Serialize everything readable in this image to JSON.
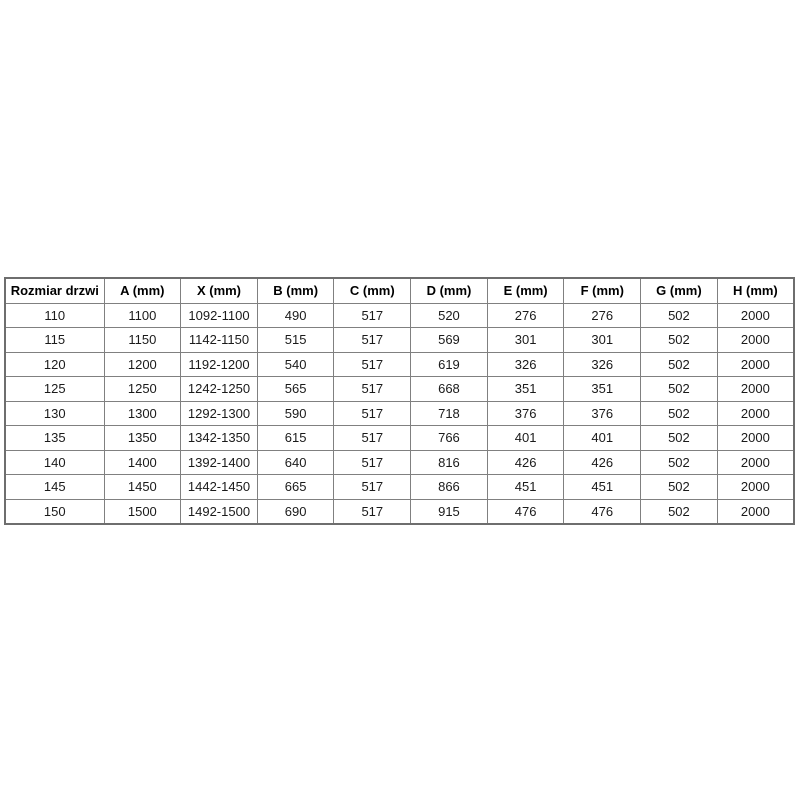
{
  "page": {
    "background_color": "#ffffff"
  },
  "table": {
    "semantic_name": "door-dimensions-table",
    "border_color": "#808080",
    "text_color": "#1a1a1a",
    "columns": [
      "Rozmiar drzwi",
      "A (mm)",
      "X (mm)",
      "B (mm)",
      "C (mm)",
      "D (mm)",
      "E (mm)",
      "F (mm)",
      "G (mm)",
      "H (mm)"
    ],
    "rows": [
      [
        "110",
        "1100",
        "1092-1100",
        "490",
        "517",
        "520",
        "276",
        "276",
        "502",
        "2000"
      ],
      [
        "115",
        "1150",
        "1142-1150",
        "515",
        "517",
        "569",
        "301",
        "301",
        "502",
        "2000"
      ],
      [
        "120",
        "1200",
        "1192-1200",
        "540",
        "517",
        "619",
        "326",
        "326",
        "502",
        "2000"
      ],
      [
        "125",
        "1250",
        "1242-1250",
        "565",
        "517",
        "668",
        "351",
        "351",
        "502",
        "2000"
      ],
      [
        "130",
        "1300",
        "1292-1300",
        "590",
        "517",
        "718",
        "376",
        "376",
        "502",
        "2000"
      ],
      [
        "135",
        "1350",
        "1342-1350",
        "615",
        "517",
        "766",
        "401",
        "401",
        "502",
        "2000"
      ],
      [
        "140",
        "1400",
        "1392-1400",
        "640",
        "517",
        "816",
        "426",
        "426",
        "502",
        "2000"
      ],
      [
        "145",
        "1450",
        "1442-1450",
        "665",
        "517",
        "866",
        "451",
        "451",
        "502",
        "2000"
      ],
      [
        "150",
        "1500",
        "1492-1500",
        "690",
        "517",
        "915",
        "476",
        "476",
        "502",
        "2000"
      ]
    ]
  },
  "chart_data": {
    "type": "table",
    "title": "",
    "columns": [
      "Rozmiar drzwi",
      "A (mm)",
      "X (mm)",
      "B (mm)",
      "C (mm)",
      "D (mm)",
      "E (mm)",
      "F (mm)",
      "G (mm)",
      "H (mm)"
    ],
    "rows": [
      [
        "110",
        "1100",
        "1092-1100",
        "490",
        "517",
        "520",
        "276",
        "276",
        "502",
        "2000"
      ],
      [
        "115",
        "1150",
        "1142-1150",
        "515",
        "517",
        "569",
        "301",
        "301",
        "502",
        "2000"
      ],
      [
        "120",
        "1200",
        "1192-1200",
        "540",
        "517",
        "619",
        "326",
        "326",
        "502",
        "2000"
      ],
      [
        "125",
        "1250",
        "1242-1250",
        "565",
        "517",
        "668",
        "351",
        "351",
        "502",
        "2000"
      ],
      [
        "130",
        "1300",
        "1292-1300",
        "590",
        "517",
        "718",
        "376",
        "376",
        "502",
        "2000"
      ],
      [
        "135",
        "1350",
        "1342-1350",
        "615",
        "517",
        "766",
        "401",
        "401",
        "502",
        "2000"
      ],
      [
        "140",
        "1400",
        "1392-1400",
        "640",
        "517",
        "816",
        "426",
        "426",
        "502",
        "2000"
      ],
      [
        "145",
        "1450",
        "1442-1450",
        "665",
        "517",
        "866",
        "451",
        "451",
        "502",
        "2000"
      ],
      [
        "150",
        "1500",
        "1492-1500",
        "690",
        "517",
        "915",
        "476",
        "476",
        "502",
        "2000"
      ]
    ]
  }
}
